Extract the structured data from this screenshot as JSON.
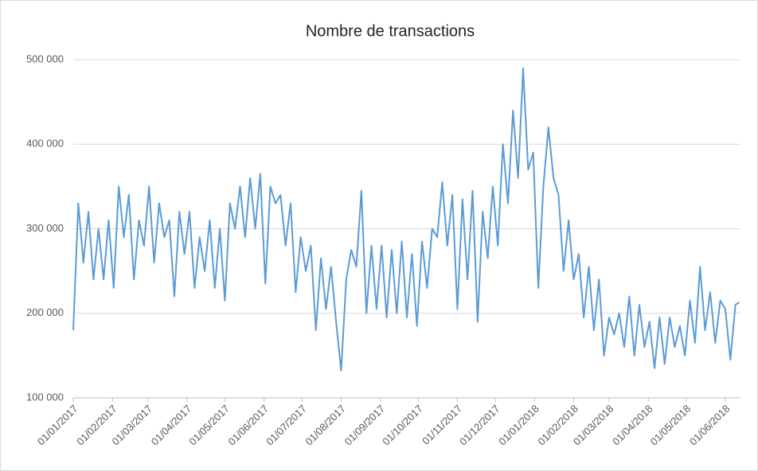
{
  "chart_data": {
    "type": "line",
    "title": "Nombre de transactions",
    "x": [
      "2017-01-01",
      "2017-01-05",
      "2017-01-09",
      "2017-01-13",
      "2017-01-17",
      "2017-01-21",
      "2017-01-25",
      "2017-01-29",
      "2017-02-02",
      "2017-02-06",
      "2017-02-10",
      "2017-02-14",
      "2017-02-18",
      "2017-02-22",
      "2017-02-26",
      "2017-03-02",
      "2017-03-06",
      "2017-03-10",
      "2017-03-14",
      "2017-03-18",
      "2017-03-22",
      "2017-03-26",
      "2017-03-30",
      "2017-04-03",
      "2017-04-07",
      "2017-04-11",
      "2017-04-15",
      "2017-04-19",
      "2017-04-23",
      "2017-04-27",
      "2017-05-01",
      "2017-05-05",
      "2017-05-09",
      "2017-05-13",
      "2017-05-17",
      "2017-05-21",
      "2017-05-25",
      "2017-05-29",
      "2017-06-02",
      "2017-06-06",
      "2017-06-10",
      "2017-06-14",
      "2017-06-18",
      "2017-06-22",
      "2017-06-26",
      "2017-06-30",
      "2017-07-04",
      "2017-07-08",
      "2017-07-12",
      "2017-07-16",
      "2017-07-20",
      "2017-07-24",
      "2017-07-28",
      "2017-08-01",
      "2017-08-05",
      "2017-08-09",
      "2017-08-13",
      "2017-08-17",
      "2017-08-21",
      "2017-08-25",
      "2017-08-29",
      "2017-09-02",
      "2017-09-06",
      "2017-09-10",
      "2017-09-14",
      "2017-09-18",
      "2017-09-22",
      "2017-09-26",
      "2017-09-30",
      "2017-10-04",
      "2017-10-08",
      "2017-10-12",
      "2017-10-16",
      "2017-10-20",
      "2017-10-24",
      "2017-10-28",
      "2017-11-01",
      "2017-11-05",
      "2017-11-09",
      "2017-11-13",
      "2017-11-17",
      "2017-11-21",
      "2017-11-25",
      "2017-11-29",
      "2017-12-03",
      "2017-12-07",
      "2017-12-11",
      "2017-12-15",
      "2017-12-19",
      "2017-12-23",
      "2017-12-27",
      "2017-12-31",
      "2018-01-04",
      "2018-01-08",
      "2018-01-12",
      "2018-01-16",
      "2018-01-20",
      "2018-01-24",
      "2018-01-28",
      "2018-02-01",
      "2018-02-05",
      "2018-02-09",
      "2018-02-13",
      "2018-02-17",
      "2018-02-21",
      "2018-02-25",
      "2018-03-01",
      "2018-03-05",
      "2018-03-09",
      "2018-03-13",
      "2018-03-17",
      "2018-03-21",
      "2018-03-25",
      "2018-03-29",
      "2018-04-02",
      "2018-04-06",
      "2018-04-10",
      "2018-04-14",
      "2018-04-18",
      "2018-04-22",
      "2018-04-26",
      "2018-04-30",
      "2018-05-04",
      "2018-05-08",
      "2018-05-12",
      "2018-05-16",
      "2018-05-20",
      "2018-05-24",
      "2018-05-28",
      "2018-06-01",
      "2018-06-05",
      "2018-06-09",
      "2018-06-12"
    ],
    "series": [
      {
        "color": "#5b9bd5",
        "values": [
          180000,
          330000,
          260000,
          320000,
          240000,
          300000,
          240000,
          310000,
          230000,
          350000,
          290000,
          340000,
          240000,
          310000,
          280000,
          350000,
          260000,
          330000,
          290000,
          310000,
          220000,
          320000,
          270000,
          320000,
          230000,
          290000,
          250000,
          310000,
          230000,
          300000,
          215000,
          330000,
          300000,
          350000,
          290000,
          360000,
          300000,
          365000,
          235000,
          350000,
          330000,
          340000,
          280000,
          330000,
          225000,
          290000,
          250000,
          280000,
          180000,
          265000,
          205000,
          255000,
          190000,
          132000,
          240000,
          275000,
          255000,
          345000,
          200000,
          280000,
          205000,
          280000,
          195000,
          275000,
          200000,
          285000,
          195000,
          270000,
          185000,
          285000,
          230000,
          300000,
          290000,
          355000,
          280000,
          340000,
          205000,
          335000,
          240000,
          345000,
          190000,
          320000,
          265000,
          350000,
          280000,
          400000,
          330000,
          440000,
          360000,
          490000,
          370000,
          390000,
          230000,
          350000,
          420000,
          360000,
          340000,
          250000,
          310000,
          240000,
          270000,
          195000,
          255000,
          180000,
          240000,
          150000,
          195000,
          175000,
          200000,
          160000,
          220000,
          150000,
          210000,
          160000,
          190000,
          135000,
          195000,
          140000,
          195000,
          160000,
          185000,
          150000,
          215000,
          165000,
          255000,
          180000,
          225000,
          165000,
          215000,
          205000,
          145000,
          210000,
          213000
        ]
      }
    ],
    "xlim": [
      "2017-01-01",
      "2018-06-13"
    ],
    "xticks": [
      {
        "value": "2017-01-01",
        "label": "01/01/2017"
      },
      {
        "value": "2017-02-01",
        "label": "01/02/2017"
      },
      {
        "value": "2017-03-01",
        "label": "01/03/2017"
      },
      {
        "value": "2017-04-01",
        "label": "01/04/2017"
      },
      {
        "value": "2017-05-01",
        "label": "01/05/2017"
      },
      {
        "value": "2017-06-01",
        "label": "01/06/2017"
      },
      {
        "value": "2017-07-01",
        "label": "01/07/2017"
      },
      {
        "value": "2017-08-01",
        "label": "01/08/2017"
      },
      {
        "value": "2017-09-01",
        "label": "01/09/2017"
      },
      {
        "value": "2017-10-01",
        "label": "01/10/2017"
      },
      {
        "value": "2017-11-01",
        "label": "01/11/2017"
      },
      {
        "value": "2017-12-01",
        "label": "01/12/2017"
      },
      {
        "value": "2018-01-01",
        "label": "01/01/2018"
      },
      {
        "value": "2018-02-01",
        "label": "01/02/2018"
      },
      {
        "value": "2018-03-01",
        "label": "01/03/2018"
      },
      {
        "value": "2018-04-01",
        "label": "01/04/2018"
      },
      {
        "value": "2018-05-01",
        "label": "01/05/2018"
      },
      {
        "value": "2018-06-01",
        "label": "01/06/2018"
      }
    ],
    "ylim": [
      100000,
      500000
    ],
    "yticks": [
      {
        "value": 100000,
        "label": "100 000"
      },
      {
        "value": 200000,
        "label": "200 000"
      },
      {
        "value": 300000,
        "label": "300 000"
      },
      {
        "value": 400000,
        "label": "400 000"
      },
      {
        "value": 500000,
        "label": "500 000"
      }
    ],
    "grid": true
  }
}
